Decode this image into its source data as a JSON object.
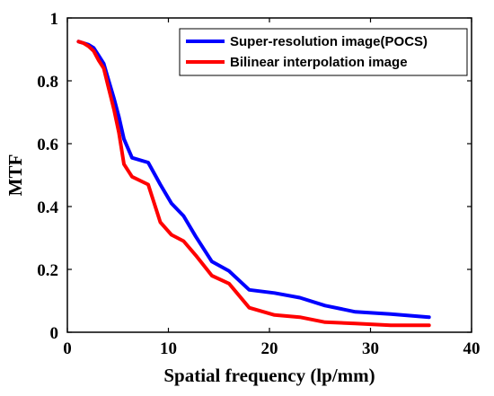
{
  "chart_data": {
    "type": "line",
    "title": "",
    "xlabel": "Spatial frequency (lp/mm)",
    "ylabel": "MTF",
    "xlim": [
      0,
      40
    ],
    "ylim": [
      0,
      1
    ],
    "xticks": [
      0,
      10,
      20,
      30,
      40
    ],
    "yticks": [
      0,
      0.2,
      0.4,
      0.6,
      0.8,
      1
    ],
    "xtick_labels": [
      "0",
      "10",
      "20",
      "30",
      "40"
    ],
    "ytick_labels": [
      "0",
      "0.2",
      "0.4",
      "0.6",
      "0.8",
      "1"
    ],
    "grid": false,
    "legend_position": "top-right",
    "series": [
      {
        "name": "Super-resolution image(POCS)",
        "color": "#0000ff",
        "x": [
          1.1,
          1.6,
          2.1,
          2.6,
          3.1,
          3.6,
          4.1,
          4.6,
          5.1,
          5.6,
          6.4,
          8.0,
          9.2,
          10.3,
          11.5,
          12.7,
          14.3,
          16.0,
          18.0,
          20.5,
          23.0,
          25.5,
          28.5,
          32.0,
          35.8
        ],
        "y": [
          0.925,
          0.92,
          0.915,
          0.905,
          0.88,
          0.855,
          0.8,
          0.745,
          0.685,
          0.615,
          0.555,
          0.54,
          0.47,
          0.41,
          0.37,
          0.305,
          0.225,
          0.195,
          0.135,
          0.125,
          0.11,
          0.085,
          0.065,
          0.058,
          0.048
        ]
      },
      {
        "name": "Bilinear interpolation image",
        "color": "#ff0000",
        "x": [
          1.1,
          1.6,
          2.1,
          2.6,
          3.1,
          3.6,
          4.1,
          4.6,
          5.1,
          5.6,
          6.4,
          8.0,
          9.2,
          10.3,
          11.5,
          12.7,
          14.3,
          16.0,
          18.0,
          20.5,
          23.0,
          25.5,
          28.5,
          32.0,
          35.8
        ],
        "y": [
          0.925,
          0.92,
          0.91,
          0.895,
          0.865,
          0.84,
          0.775,
          0.71,
          0.635,
          0.535,
          0.495,
          0.47,
          0.35,
          0.31,
          0.29,
          0.245,
          0.18,
          0.155,
          0.078,
          0.055,
          0.048,
          0.032,
          0.028,
          0.022,
          0.022
        ]
      }
    ]
  }
}
